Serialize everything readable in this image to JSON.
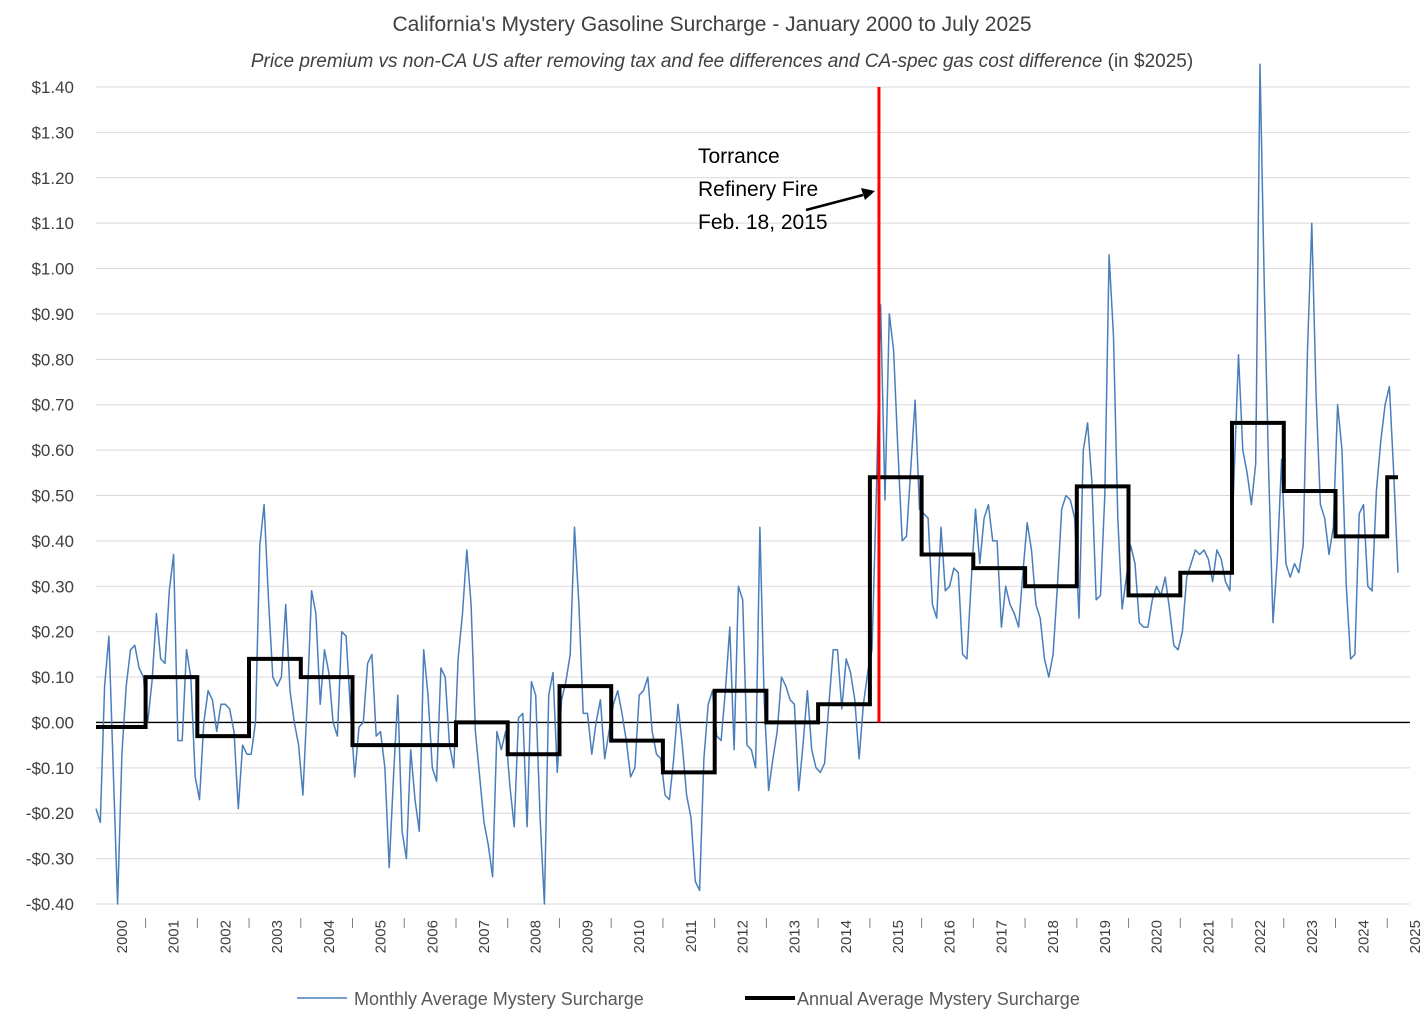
{
  "chart_data": {
    "type": "line",
    "title": "California's Mystery Gasoline Surcharge - January 2000 to July 2025",
    "subtitle_italic": "Price premium vs non-CA US after removing tax and fee differences and CA-spec gas cost difference",
    "subtitle_rest": " (in $2025)",
    "ylim": [
      -0.4,
      1.4
    ],
    "yticks": [
      1.4,
      1.3,
      1.2,
      1.1,
      1.0,
      0.9,
      0.8,
      0.7,
      0.6,
      0.5,
      0.4,
      0.3,
      0.2,
      0.1,
      0.0,
      -0.1,
      -0.2,
      -0.3,
      -0.4
    ],
    "ytick_labels": [
      "$1.40",
      "$1.30",
      "$1.20",
      "$1.10",
      "$1.00",
      "$0.90",
      "$0.80",
      "$0.70",
      "$0.60",
      "$0.50",
      "$0.40",
      "$0.30",
      "$0.20",
      "$0.10",
      "$0.00",
      "-$0.10",
      "-$0.20",
      "-$0.30",
      "-$0.40"
    ],
    "xtick_labels": [
      "2000",
      "2001",
      "2002",
      "2003",
      "2004",
      "2005",
      "2006",
      "2007",
      "2008",
      "2009",
      "2010",
      "2011",
      "2012",
      "2013",
      "2014",
      "2015",
      "2016",
      "2017",
      "2018",
      "2019",
      "2020",
      "2021",
      "2022",
      "2023",
      "2024",
      "2025"
    ],
    "grid": true,
    "legend_position": "bottom",
    "colors": {
      "monthly": "#4a7ebb",
      "annual": "#000000",
      "event": "#ff0000",
      "grid": "#d9d9d9",
      "zero": "#000000"
    },
    "annotation": {
      "lines": [
        "Torrance",
        "Refinery Fire",
        "Feb. 18, 2015"
      ],
      "event_date": "Feb. 18, 2015"
    },
    "series": [
      {
        "name": "Monthly Average Mystery Surcharge",
        "kind": "monthly",
        "start": "2000-01",
        "values": [
          -0.19,
          -0.22,
          0.08,
          0.19,
          -0.1,
          -0.4,
          -0.07,
          0.08,
          0.16,
          0.17,
          0.12,
          0.1,
          0.0,
          0.09,
          0.24,
          0.14,
          0.13,
          0.29,
          0.37,
          -0.04,
          -0.04,
          0.16,
          0.1,
          -0.12,
          -0.17,
          0.0,
          0.07,
          0.05,
          -0.02,
          0.04,
          0.04,
          0.03,
          -0.02,
          -0.19,
          -0.05,
          -0.07,
          -0.07,
          0.0,
          0.39,
          0.48,
          0.27,
          0.1,
          0.08,
          0.1,
          0.26,
          0.07,
          0.0,
          -0.05,
          -0.16,
          0.05,
          0.29,
          0.24,
          0.04,
          0.16,
          0.11,
          0.0,
          -0.03,
          0.2,
          0.19,
          0.03,
          -0.12,
          -0.01,
          0.0,
          0.13,
          0.15,
          -0.03,
          -0.02,
          -0.1,
          -0.32,
          -0.12,
          0.06,
          -0.24,
          -0.3,
          -0.06,
          -0.17,
          -0.24,
          0.16,
          0.06,
          -0.1,
          -0.13,
          0.12,
          0.1,
          -0.05,
          -0.1,
          0.14,
          0.24,
          0.38,
          0.26,
          -0.02,
          -0.12,
          -0.22,
          -0.27,
          -0.34,
          -0.02,
          -0.06,
          -0.02,
          -0.14,
          -0.23,
          0.01,
          0.02,
          -0.23,
          0.09,
          0.06,
          -0.21,
          -0.4,
          0.06,
          0.11,
          -0.11,
          0.05,
          0.09,
          0.15,
          0.43,
          0.26,
          0.02,
          0.02,
          -0.07,
          0.0,
          0.05,
          -0.08,
          -0.02,
          0.04,
          0.07,
          0.02,
          -0.04,
          -0.12,
          -0.1,
          0.06,
          0.07,
          0.1,
          -0.02,
          -0.07,
          -0.08,
          -0.16,
          -0.17,
          -0.08,
          0.04,
          -0.05,
          -0.16,
          -0.21,
          -0.35,
          -0.37,
          -0.08,
          0.04,
          0.07,
          -0.03,
          -0.04,
          0.07,
          0.21,
          -0.06,
          0.3,
          0.27,
          -0.05,
          -0.06,
          -0.1,
          0.43,
          0.05,
          -0.15,
          -0.08,
          -0.02,
          0.1,
          0.08,
          0.05,
          0.04,
          -0.15,
          -0.05,
          0.07,
          -0.06,
          -0.1,
          -0.11,
          -0.09,
          0.04,
          0.16,
          0.16,
          0.03,
          0.14,
          0.11,
          0.05,
          -0.08,
          0.04,
          0.11,
          0.16,
          0.5,
          0.92,
          0.49,
          0.9,
          0.82,
          0.6,
          0.4,
          0.41,
          0.56,
          0.71,
          0.47,
          0.46,
          0.45,
          0.26,
          0.23,
          0.43,
          0.29,
          0.3,
          0.34,
          0.33,
          0.15,
          0.14,
          0.31,
          0.47,
          0.35,
          0.45,
          0.48,
          0.4,
          0.4,
          0.21,
          0.3,
          0.26,
          0.24,
          0.21,
          0.33,
          0.44,
          0.38,
          0.26,
          0.23,
          0.14,
          0.1,
          0.15,
          0.3,
          0.47,
          0.5,
          0.49,
          0.45,
          0.23,
          0.6,
          0.66,
          0.53,
          0.27,
          0.28,
          0.5,
          1.03,
          0.85,
          0.45,
          0.25,
          0.32,
          0.39,
          0.35,
          0.22,
          0.21,
          0.21,
          0.27,
          0.3,
          0.28,
          0.32,
          0.25,
          0.17,
          0.16,
          0.2,
          0.32,
          0.35,
          0.38,
          0.37,
          0.38,
          0.36,
          0.31,
          0.38,
          0.36,
          0.31,
          0.29,
          0.55,
          0.81,
          0.6,
          0.55,
          0.48,
          0.57,
          1.45,
          0.95,
          0.55,
          0.22,
          0.36,
          0.58,
          0.35,
          0.32,
          0.35,
          0.33,
          0.39,
          0.82,
          1.1,
          0.72,
          0.48,
          0.45,
          0.37,
          0.43,
          0.7,
          0.6,
          0.3,
          0.14,
          0.15,
          0.46,
          0.48,
          0.3,
          0.29,
          0.51,
          0.62,
          0.7,
          0.74,
          0.55,
          0.33
        ]
      },
      {
        "name": "Annual Average Mystery Surcharge",
        "kind": "annual",
        "years": [
          2000,
          2001,
          2002,
          2003,
          2004,
          2005,
          2006,
          2007,
          2008,
          2009,
          2010,
          2011,
          2012,
          2013,
          2014,
          2015,
          2016,
          2017,
          2018,
          2019,
          2020,
          2021,
          2022,
          2023,
          2024,
          2025
        ],
        "values": [
          -0.01,
          0.1,
          -0.03,
          0.14,
          0.1,
          -0.05,
          -0.05,
          0.0,
          -0.07,
          0.08,
          -0.04,
          -0.11,
          0.07,
          0.0,
          0.04,
          0.54,
          0.37,
          0.34,
          0.3,
          0.52,
          0.28,
          0.33,
          0.66,
          0.51,
          0.41,
          0.54
        ]
      }
    ]
  }
}
